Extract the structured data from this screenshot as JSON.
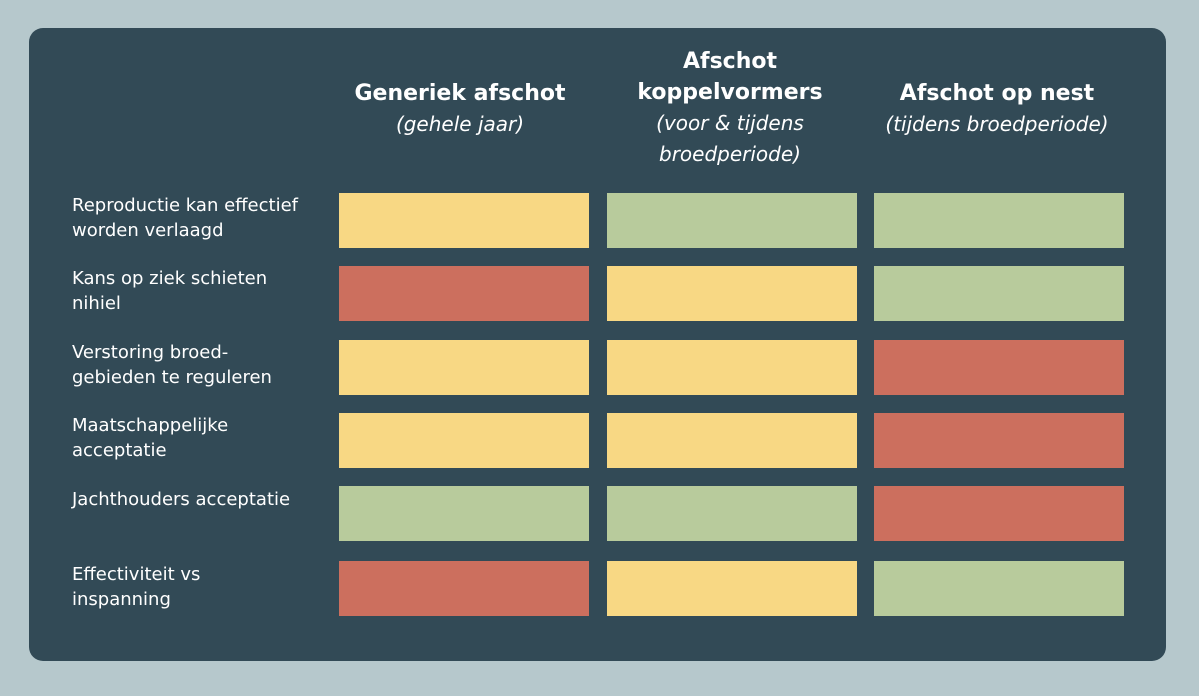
{
  "columns": [
    {
      "title": "Generiek afschot",
      "subtitle": "(gehele jaar)"
    },
    {
      "title": "Afschot\nkoppelvormers",
      "subtitle": "(voor & tijdens\nbroedperiode)"
    },
    {
      "title": "Afschot op nest",
      "subtitle": "(tijdens broedperiode)"
    }
  ],
  "rows": [
    {
      "label": "Reproductie kan effectief\nworden verlaagd",
      "ratings": [
        "yellow",
        "green",
        "green"
      ]
    },
    {
      "label": "Kans op ziek schieten\nnihiel",
      "ratings": [
        "red",
        "yellow",
        "green"
      ]
    },
    {
      "label": "Verstoring broed-\ngebieden te reguleren",
      "ratings": [
        "yellow",
        "yellow",
        "red"
      ]
    },
    {
      "label": "Maatschappelijke\nacceptatie",
      "ratings": [
        "yellow",
        "yellow",
        "red"
      ]
    },
    {
      "label": "Jachthouders acceptatie",
      "ratings": [
        "green",
        "green",
        "red"
      ]
    },
    {
      "label": "Effectiviteit vs\ninspanning",
      "ratings": [
        "red",
        "yellow",
        "green"
      ]
    }
  ],
  "colors": {
    "background": "#b6c8cc",
    "panel": "#324a56",
    "yellow": "#f8d884",
    "green": "#b8cb9c",
    "red": "#cc6f5e"
  }
}
